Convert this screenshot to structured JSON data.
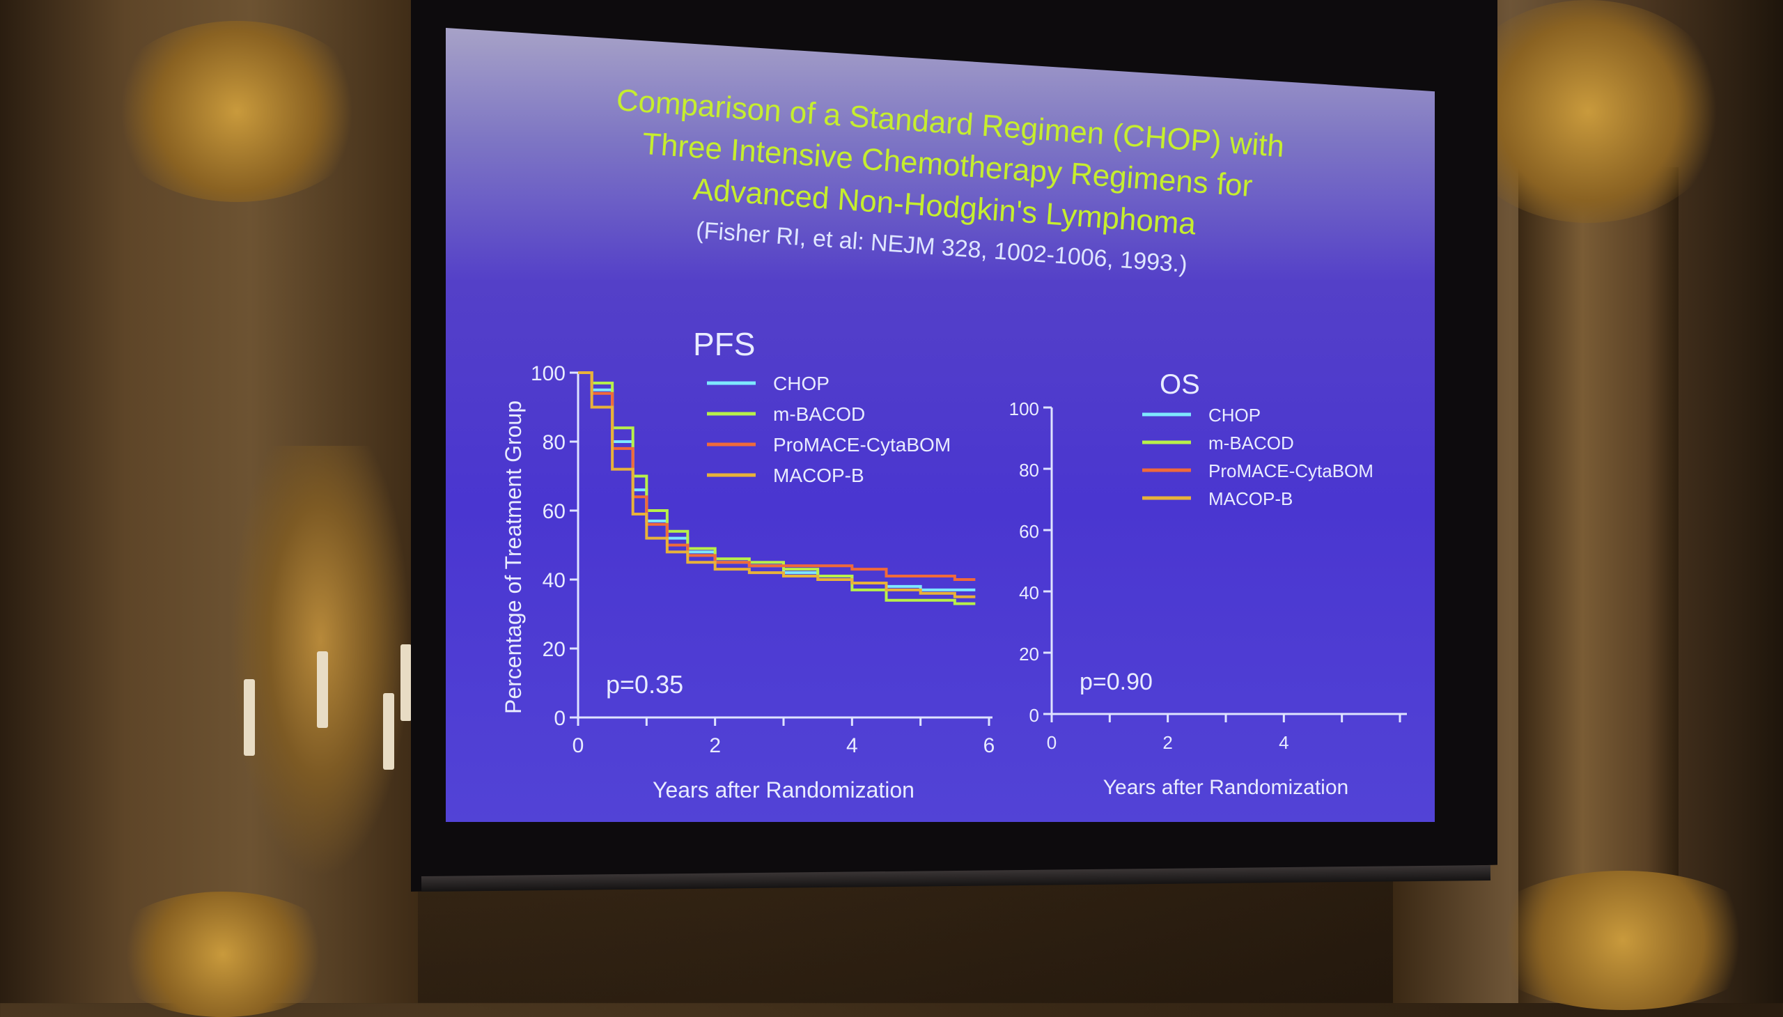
{
  "slide": {
    "title_lines": [
      "Comparison of a Standard Regimen (CHOP) with",
      "Three Intensive Chemotherapy Regimens for",
      "Advanced Non-Hodgkin's Lymphoma"
    ],
    "citation": "(Fisher RI, et al: NEJM 328, 1002-1006, 1993.)",
    "y_axis_label": "Percentage of Treatment Group"
  },
  "chart_data": [
    {
      "type": "line",
      "title": "PFS",
      "xlabel": "Years after Randomization",
      "ylabel": "Percentage of Treatment Group",
      "xlim": [
        0,
        6
      ],
      "ylim": [
        0,
        100
      ],
      "x_ticks": [
        "0",
        "2",
        "4",
        "6"
      ],
      "y_ticks": [
        "0",
        "20",
        "40",
        "60",
        "80",
        "100"
      ],
      "annotation": "p=0.35",
      "legend": "top-right",
      "series": [
        {
          "name": "CHOP",
          "color": "#7ee8ff",
          "x": [
            0,
            0.2,
            0.5,
            0.8,
            1.0,
            1.3,
            1.6,
            2.0,
            2.5,
            3.0,
            3.5,
            4.0,
            4.5,
            5.0,
            5.5,
            5.8
          ],
          "y": [
            100,
            95,
            80,
            66,
            57,
            52,
            48,
            45,
            44,
            42,
            41,
            39,
            38,
            37,
            37,
            37
          ]
        },
        {
          "name": "m-BACOD",
          "color": "#b8f04a",
          "x": [
            0,
            0.2,
            0.5,
            0.8,
            1.0,
            1.3,
            1.6,
            2.0,
            2.5,
            3.0,
            3.5,
            4.0,
            4.5,
            5.0,
            5.5,
            5.8
          ],
          "y": [
            100,
            97,
            84,
            70,
            60,
            54,
            49,
            46,
            45,
            43,
            41,
            37,
            34,
            34,
            33,
            33
          ]
        },
        {
          "name": "ProMACE-CytaBOM",
          "color": "#f06a3a",
          "x": [
            0,
            0.2,
            0.5,
            0.8,
            1.0,
            1.3,
            1.6,
            2.0,
            2.5,
            3.0,
            3.5,
            4.0,
            4.5,
            5.0,
            5.5,
            5.8
          ],
          "y": [
            100,
            94,
            78,
            64,
            56,
            50,
            47,
            45,
            44,
            44,
            44,
            43,
            41,
            41,
            40,
            40
          ]
        },
        {
          "name": "MACOP-B",
          "color": "#e8b23a",
          "x": [
            0,
            0.2,
            0.5,
            0.8,
            1.0,
            1.3,
            1.6,
            2.0,
            2.5,
            3.0,
            3.5,
            4.0,
            4.5,
            5.0,
            5.5,
            5.8
          ],
          "y": [
            100,
            90,
            72,
            59,
            52,
            48,
            45,
            43,
            42,
            41,
            40,
            39,
            37,
            36,
            35,
            35
          ]
        }
      ]
    },
    {
      "type": "line",
      "title": "OS",
      "xlabel": "Years after Randomization",
      "xlim": [
        0,
        6
      ],
      "ylim": [
        0,
        100
      ],
      "x_ticks": [
        "0",
        "2",
        "4"
      ],
      "y_ticks": [
        "0",
        "20",
        "40",
        "60",
        "80",
        "100"
      ],
      "annotation": "p=0.90",
      "legend": "top-right",
      "series": [
        {
          "name": "CHOP",
          "color": "#7ee8ff",
          "x": [],
          "y": []
        },
        {
          "name": "m-BACOD",
          "color": "#b8f04a",
          "x": [],
          "y": []
        },
        {
          "name": "ProMACE-CytaBOM",
          "color": "#f06a3a",
          "x": [],
          "y": []
        },
        {
          "name": "MACOP-B",
          "color": "#e8b23a",
          "x": [],
          "y": []
        }
      ]
    }
  ]
}
